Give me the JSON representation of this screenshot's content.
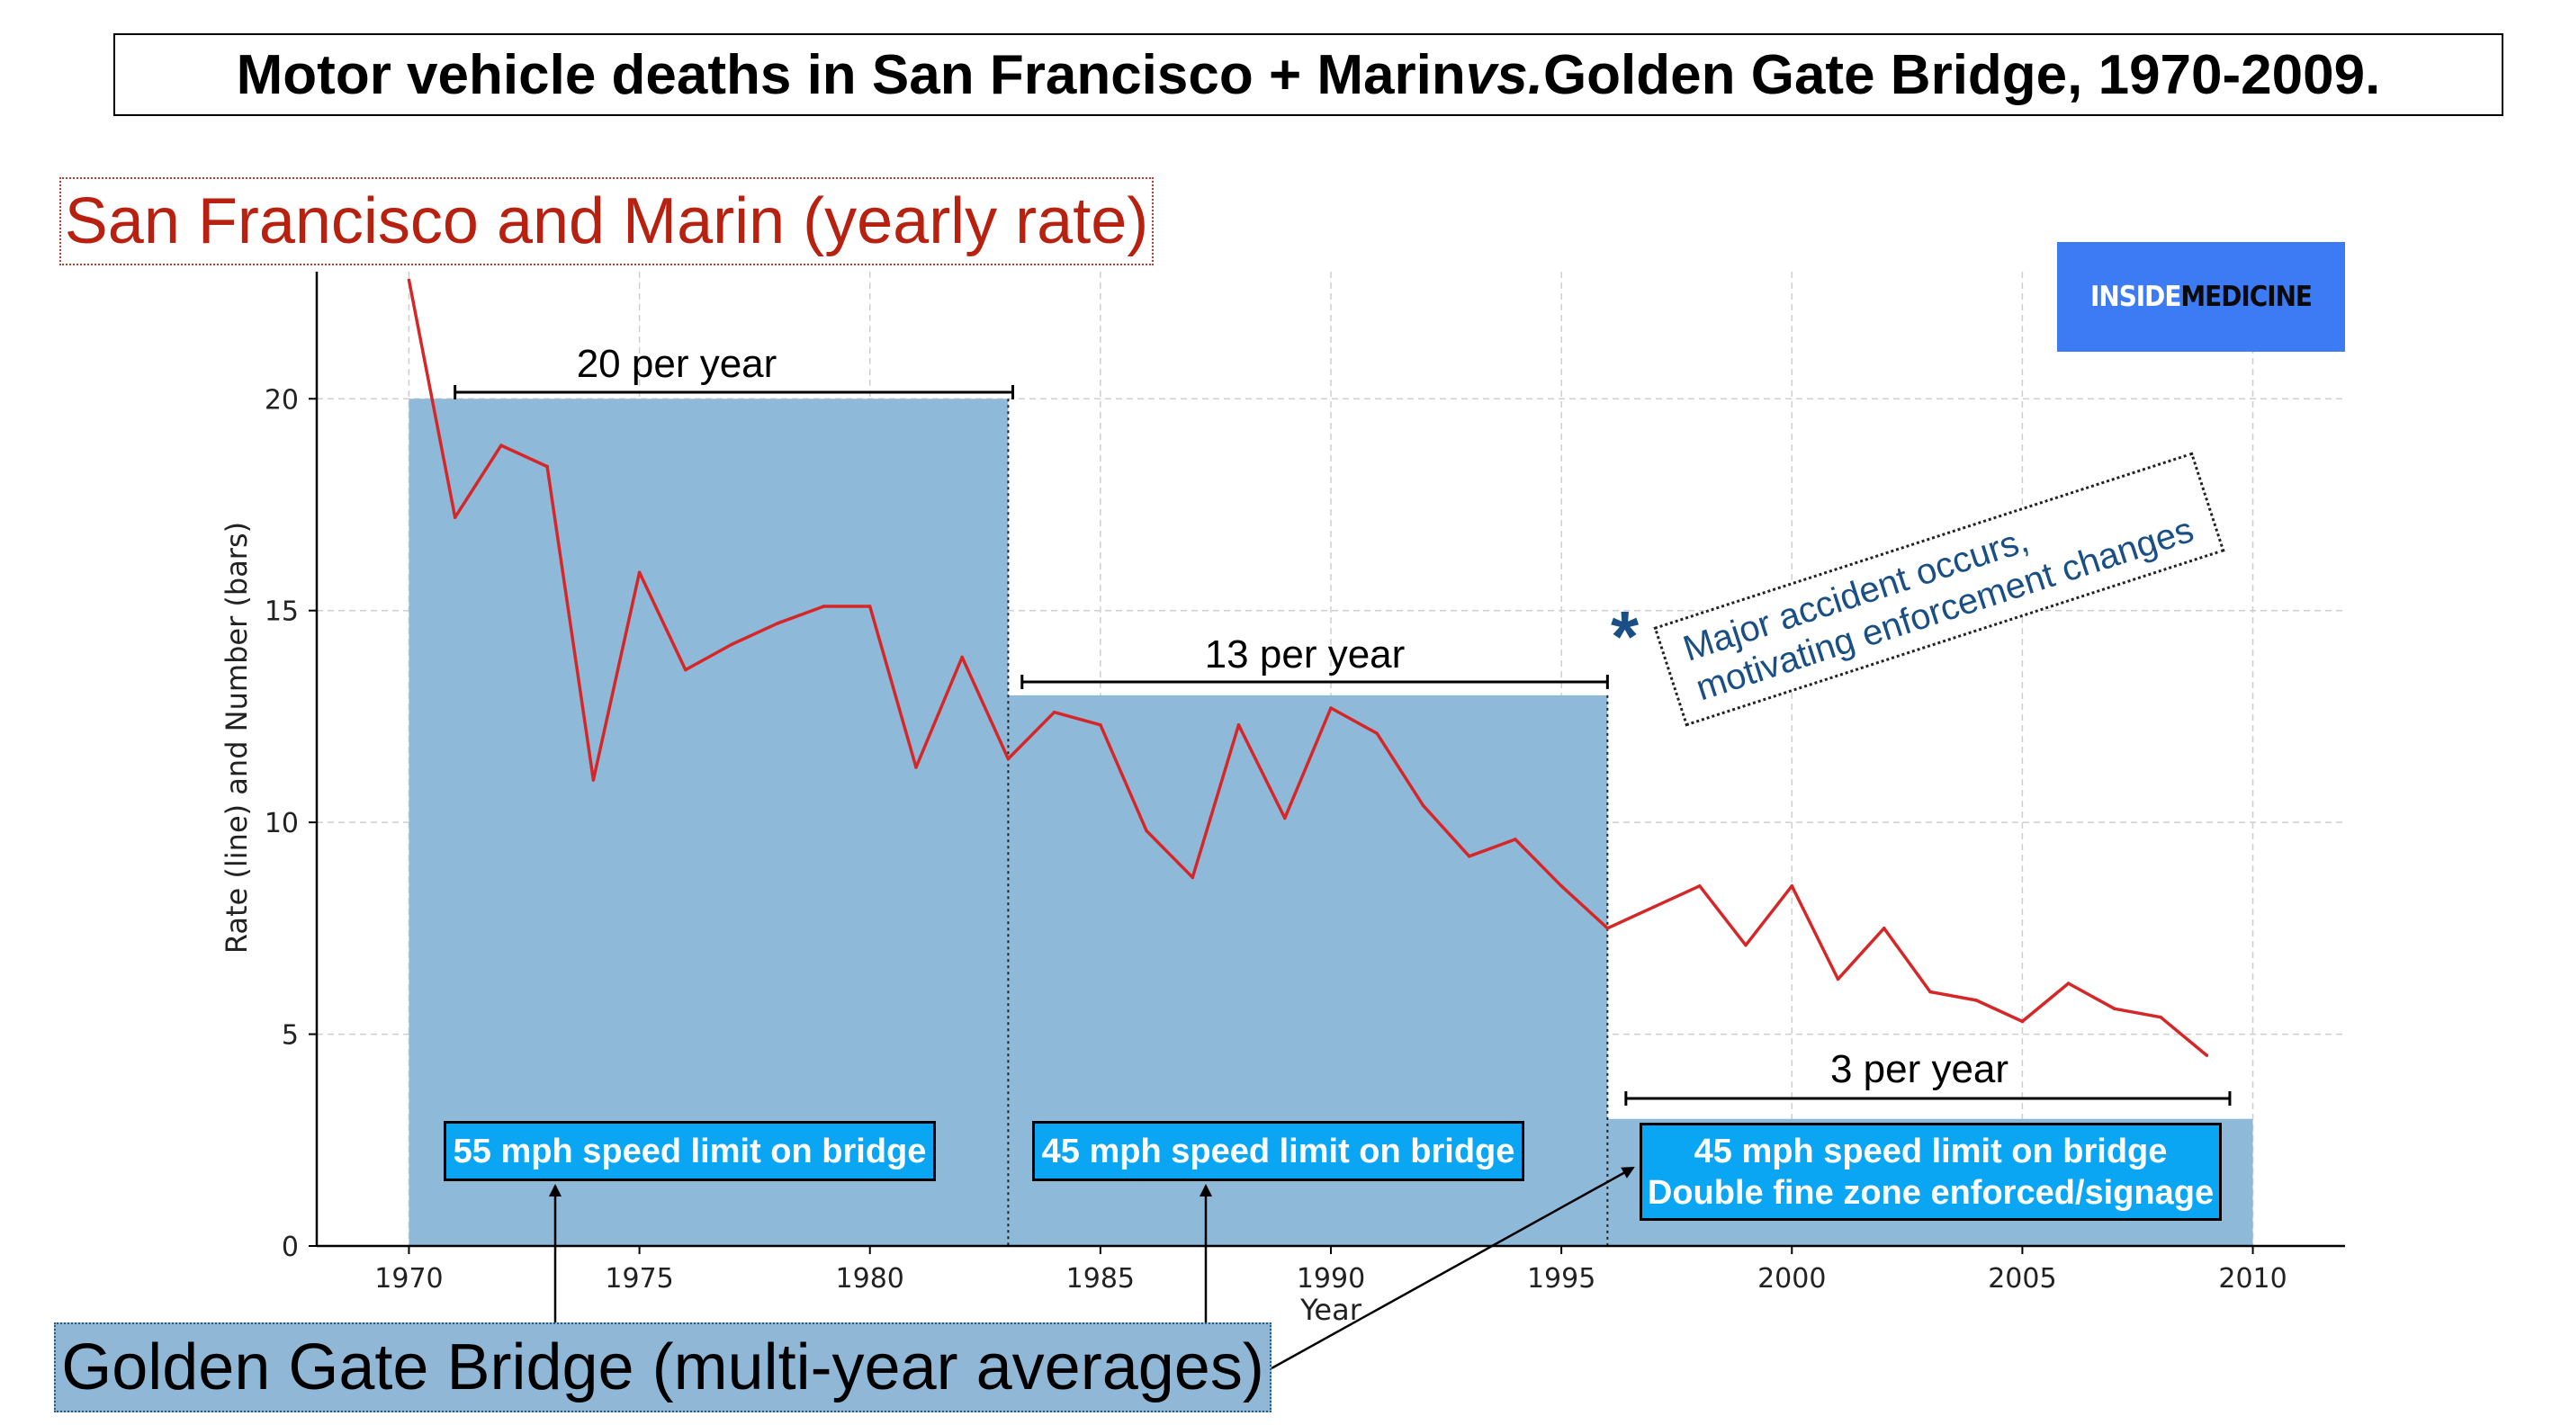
{
  "title": {
    "part1": "Motor vehicle deaths in San Francisco + Marin ",
    "vs": "vs.",
    "part2": " Golden Gate Bridge, 1970-2009."
  },
  "labels": {
    "sf_marin": "San Francisco and Marin (yearly rate)",
    "golden_gate": "Golden Gate Bridge (multi-year averages)"
  },
  "logo": {
    "word1": "INSIDE",
    "word2": "MEDICINE"
  },
  "annotation": {
    "asterisk": "*",
    "line1": "Major accident occurs,",
    "line2": "motivating enforcement changes"
  },
  "colors": {
    "bar": "#8fb9d9",
    "line": "#d62728",
    "speed_box": "#0aa6f4",
    "annotation": "#1a4f86",
    "logo_bg": "#3d7bf4"
  },
  "chart_data": {
    "type": "bar+line",
    "xlabel": "Year",
    "ylabel": "Rate (line) and Number (bars)",
    "xlim": [
      1968,
      2012
    ],
    "ylim": [
      0,
      23
    ],
    "xticks": [
      1970,
      1975,
      1980,
      1985,
      1990,
      1995,
      2000,
      2005,
      2010
    ],
    "yticks": [
      0,
      5,
      10,
      15,
      20
    ],
    "grid": true,
    "bars": [
      {
        "start": 1970,
        "end": 1983,
        "value": 20,
        "period_label": "20 per year",
        "speed_label": [
          "55 mph speed limit on bridge"
        ]
      },
      {
        "start": 1983,
        "end": 1996,
        "value": 13,
        "period_label": "13 per year",
        "speed_label": [
          "45 mph speed limit on bridge"
        ]
      },
      {
        "start": 1996,
        "end": 2010,
        "value": 3,
        "period_label": "3 per year",
        "speed_label": [
          "45 mph speed limit on bridge",
          "Double fine zone enforced/signage"
        ]
      }
    ],
    "line": {
      "name": "San Francisco and Marin (yearly rate)",
      "x": [
        1970,
        1971,
        1972,
        1973,
        1974,
        1975,
        1976,
        1977,
        1978,
        1979,
        1980,
        1981,
        1982,
        1983,
        1984,
        1985,
        1986,
        1987,
        1988,
        1989,
        1990,
        1991,
        1992,
        1993,
        1994,
        1995,
        1996,
        1997,
        1998,
        1999,
        2000,
        2001,
        2002,
        2003,
        2004,
        2005,
        2006,
        2007,
        2008,
        2009
      ],
      "y": [
        22.8,
        17.2,
        18.9,
        18.4,
        11.0,
        15.9,
        13.6,
        14.2,
        14.7,
        15.1,
        15.1,
        11.3,
        13.9,
        11.5,
        12.6,
        12.3,
        9.8,
        8.7,
        12.3,
        10.1,
        12.7,
        12.1,
        10.4,
        9.2,
        9.6,
        8.5,
        7.5,
        8.0,
        8.5,
        7.1,
        8.5,
        6.3,
        7.5,
        6.0,
        5.8,
        5.3,
        6.2,
        5.6,
        5.4,
        4.5
      ]
    }
  }
}
